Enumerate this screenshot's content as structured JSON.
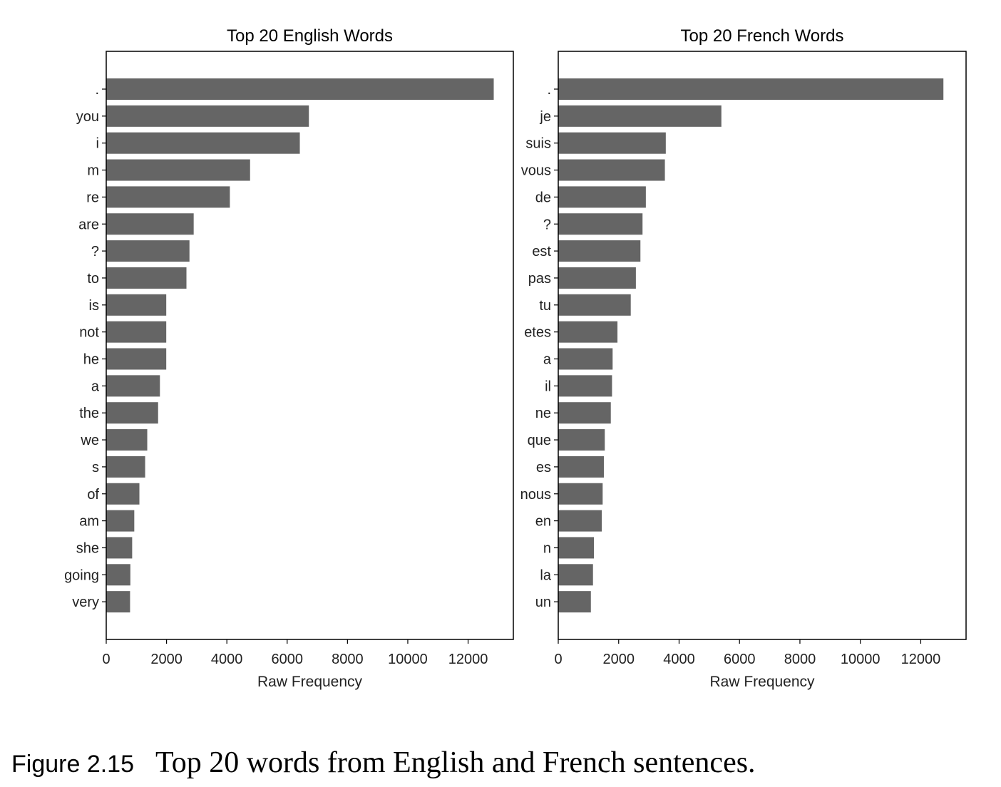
{
  "chart_data": [
    {
      "type": "bar",
      "orientation": "horizontal",
      "title": "Top 20 English Words",
      "xlabel": "Raw Frequency",
      "ylabel": "",
      "categories": [
        ".",
        "you",
        "i",
        "m",
        "re",
        "are",
        "?",
        "to",
        "is",
        "not",
        "he",
        "a",
        "the",
        "we",
        "s",
        "of",
        "am",
        "she",
        "going",
        "very"
      ],
      "values": [
        12850,
        6720,
        6420,
        4770,
        4100,
        2900,
        2760,
        2660,
        1990,
        1990,
        1990,
        1780,
        1720,
        1360,
        1290,
        1100,
        930,
        860,
        800,
        790
      ],
      "xlim": [
        0,
        13500
      ],
      "xticks": [
        0,
        2000,
        4000,
        6000,
        8000,
        10000,
        12000
      ],
      "color": "#656565",
      "grid": false
    },
    {
      "type": "bar",
      "orientation": "horizontal",
      "title": "Top 20 French Words",
      "xlabel": "Raw Frequency",
      "ylabel": "",
      "categories": [
        ".",
        "je",
        "suis",
        "vous",
        "de",
        "?",
        "est",
        "pas",
        "tu",
        "etes",
        "a",
        "il",
        "ne",
        "que",
        "es",
        "nous",
        "en",
        "n",
        "la",
        "un"
      ],
      "values": [
        12750,
        5400,
        3560,
        3530,
        2900,
        2790,
        2720,
        2570,
        2400,
        1960,
        1800,
        1780,
        1740,
        1540,
        1510,
        1470,
        1440,
        1180,
        1150,
        1080
      ],
      "xlim": [
        0,
        13500
      ],
      "xticks": [
        0,
        2000,
        4000,
        6000,
        8000,
        10000,
        12000
      ],
      "color": "#656565",
      "grid": false
    }
  ],
  "caption": {
    "label": "Figure 2.15",
    "text": "Top 20 words from English and French sentences."
  }
}
